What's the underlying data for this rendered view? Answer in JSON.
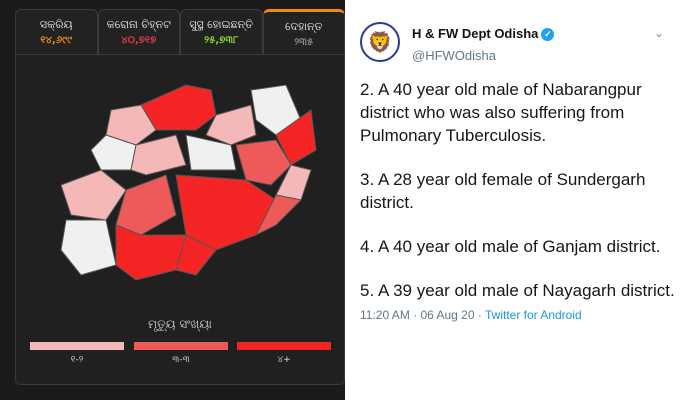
{
  "dashboard": {
    "tabs": [
      {
        "label": "ସକ୍ରିୟ",
        "value": "୧୪,୬୯୯",
        "color": "#f08a10"
      },
      {
        "label": "କରୋନା ଚିହ୍ନଟ",
        "value": "୪୦,୭୧୭",
        "color": "#e03c4a"
      },
      {
        "label": "ସୁସ୍ଥ ହୋଇଛନ୍ତି",
        "value": "୨୫,୭୩୮",
        "color": "#8ad830"
      },
      {
        "label": "ଦେହାନ୍ତ",
        "value": "୨୩୫",
        "color": "#888888",
        "active": true
      }
    ],
    "legend": {
      "title": "ମୃତ୍ୟୁ ସଂଖ୍ୟା",
      "items": [
        {
          "label": "୧-୨",
          "color": "#f4b8b8"
        },
        {
          "label": "୩-୩",
          "color": "#ee5a5a"
        },
        {
          "label": "୪+",
          "color": "#f52525"
        }
      ]
    }
  },
  "tweet": {
    "name": "H & FW Dept Odisha",
    "handle": "@HFWOdisha",
    "paragraphs": [
      "2. A 40 year old male of Nabarangpur district who was also suffering from Pulmonary Tuberculosis.",
      "3. A 28 year old female of Sundergarh district.",
      "4. A 40 year old male of Ganjam district.",
      "5. A 39 year old male of Nayagarh district."
    ],
    "time": "11:20 AM · 06 Aug 20 · ",
    "source": "Twitter for Android"
  }
}
